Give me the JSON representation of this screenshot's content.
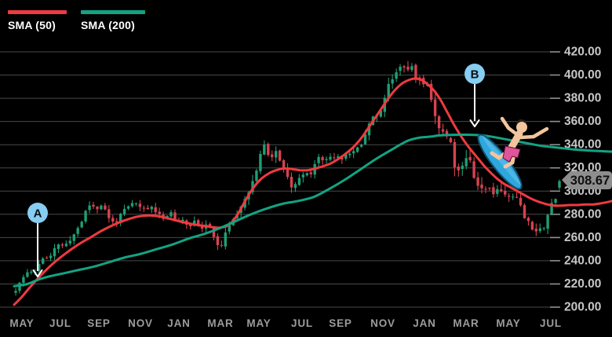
{
  "legend": {
    "items": [
      {
        "label": "SMA (50)",
        "color": "#ef3a40"
      },
      {
        "label": "SMA (200)",
        "color": "#13a383"
      }
    ],
    "position": "top-left"
  },
  "colors": {
    "background": "#000000",
    "grid": "#484848",
    "tick": "#909090",
    "y_label": "#c6c6c6",
    "x_label": "#9c9c9c",
    "up_candle": "#1f9e74",
    "down_candle": "#d6434f",
    "sma50": "#ef3a40",
    "sma200": "#13a383",
    "annotation_circle": "#86cdf2",
    "annotation_letter": "#0b0f14",
    "arrow": "#ffffff",
    "badge_bg": "#8e8e8e",
    "badge_text": "#101010"
  },
  "chart_data": {
    "type": "candlestick",
    "title": "",
    "legend_entries": [
      "SMA (50)",
      "SMA (200)"
    ],
    "grid": true,
    "y_axis": {
      "min": 200,
      "max": 420,
      "step": 20,
      "side": "right",
      "tick_labels": [
        "420.00",
        "400.00",
        "380.00",
        "360.00",
        "340.00",
        "320.00",
        "300.00",
        "280.00",
        "260.00",
        "240.00",
        "220.00",
        "200.00"
      ]
    },
    "x_axis": {
      "labels": [
        {
          "text": "MAY",
          "x": 28
        },
        {
          "text": "JUL",
          "x": 77
        },
        {
          "text": "SEP",
          "x": 126
        },
        {
          "text": "NOV",
          "x": 179
        },
        {
          "text": "JAN",
          "x": 228
        },
        {
          "text": "MAR",
          "x": 281
        },
        {
          "text": "MAY",
          "x": 330
        },
        {
          "text": "JUL",
          "x": 385
        },
        {
          "text": "SEP",
          "x": 434
        },
        {
          "text": "NOV",
          "x": 488
        },
        {
          "text": "JAN",
          "x": 541
        },
        {
          "text": "MAR",
          "x": 594
        },
        {
          "text": "MAY",
          "x": 648
        },
        {
          "text": "JUL",
          "x": 702
        }
      ]
    },
    "last_price_label": "308.67",
    "last_price_value": 308.67,
    "seed": 11,
    "candle_count": 141,
    "x_range": [
      20,
      713
    ],
    "price_anchors": [
      [
        20,
        214
      ],
      [
        26,
        221
      ],
      [
        32,
        228
      ],
      [
        38,
        233
      ],
      [
        44,
        229
      ],
      [
        50,
        238
      ],
      [
        56,
        244
      ],
      [
        62,
        240
      ],
      [
        68,
        248
      ],
      [
        75,
        255
      ],
      [
        82,
        252
      ],
      [
        90,
        258
      ],
      [
        97,
        266
      ],
      [
        104,
        274
      ],
      [
        110,
        284
      ],
      [
        116,
        290
      ],
      [
        122,
        284
      ],
      [
        130,
        289
      ],
      [
        138,
        277
      ],
      [
        146,
        272
      ],
      [
        154,
        280
      ],
      [
        162,
        285
      ],
      [
        170,
        290
      ],
      [
        178,
        287
      ],
      [
        186,
        283
      ],
      [
        194,
        287
      ],
      [
        202,
        280
      ],
      [
        210,
        277
      ],
      [
        218,
        282
      ],
      [
        226,
        272
      ],
      [
        234,
        275
      ],
      [
        242,
        271
      ],
      [
        250,
        274
      ],
      [
        258,
        268
      ],
      [
        266,
        272
      ],
      [
        272,
        263
      ],
      [
        278,
        250
      ],
      [
        284,
        257
      ],
      [
        292,
        269
      ],
      [
        300,
        280
      ],
      [
        308,
        289
      ],
      [
        314,
        297
      ],
      [
        320,
        305
      ],
      [
        326,
        315
      ],
      [
        332,
        330
      ],
      [
        336,
        344
      ],
      [
        340,
        335
      ],
      [
        346,
        329
      ],
      [
        352,
        334
      ],
      [
        358,
        325
      ],
      [
        364,
        317
      ],
      [
        370,
        301
      ],
      [
        376,
        306
      ],
      [
        382,
        311
      ],
      [
        388,
        316
      ],
      [
        394,
        313
      ],
      [
        400,
        323
      ],
      [
        406,
        329
      ],
      [
        412,
        326
      ],
      [
        418,
        331
      ],
      [
        424,
        328
      ],
      [
        430,
        332
      ],
      [
        436,
        329
      ],
      [
        442,
        333
      ],
      [
        448,
        331
      ],
      [
        454,
        336
      ],
      [
        460,
        340
      ],
      [
        466,
        352
      ],
      [
        472,
        361
      ],
      [
        478,
        367
      ],
      [
        484,
        363
      ],
      [
        490,
        382
      ],
      [
        496,
        392
      ],
      [
        502,
        400
      ],
      [
        508,
        406
      ],
      [
        514,
        411
      ],
      [
        518,
        404
      ],
      [
        522,
        409
      ],
      [
        526,
        403
      ],
      [
        530,
        400
      ],
      [
        534,
        396
      ],
      [
        538,
        391
      ],
      [
        544,
        397
      ],
      [
        550,
        379
      ],
      [
        556,
        360
      ],
      [
        562,
        354
      ],
      [
        568,
        351
      ],
      [
        574,
        346
      ],
      [
        580,
        319
      ],
      [
        586,
        315
      ],
      [
        592,
        329
      ],
      [
        598,
        334
      ],
      [
        602,
        319
      ],
      [
        606,
        311
      ],
      [
        610,
        301
      ],
      [
        616,
        306
      ],
      [
        622,
        302
      ],
      [
        628,
        297
      ],
      [
        634,
        304
      ],
      [
        640,
        296
      ],
      [
        646,
        300
      ],
      [
        652,
        292
      ],
      [
        658,
        296
      ],
      [
        664,
        288
      ],
      [
        670,
        276
      ],
      [
        676,
        270
      ],
      [
        682,
        268
      ],
      [
        688,
        267
      ],
      [
        694,
        271
      ],
      [
        700,
        284
      ],
      [
        703,
        290
      ],
      [
        706,
        287
      ],
      [
        709,
        296
      ],
      [
        711,
        303
      ],
      [
        713,
        308.67
      ]
    ],
    "volatility_anchors": [
      [
        20,
        4
      ],
      [
        100,
        4.5
      ],
      [
        200,
        4
      ],
      [
        270,
        5
      ],
      [
        290,
        5.5
      ],
      [
        336,
        6
      ],
      [
        370,
        5
      ],
      [
        450,
        4.5
      ],
      [
        500,
        7
      ],
      [
        540,
        7.5
      ],
      [
        580,
        9
      ],
      [
        600,
        8
      ],
      [
        620,
        7
      ],
      [
        650,
        6
      ],
      [
        680,
        5.5
      ],
      [
        700,
        6
      ],
      [
        713,
        3
      ]
    ],
    "series": [
      {
        "name": "SMA (50)",
        "type": "line",
        "color_key": "sma50",
        "points": [
          [
            18,
            202
          ],
          [
            28,
            209
          ],
          [
            38,
            217
          ],
          [
            48,
            224.5
          ],
          [
            58,
            231.5
          ],
          [
            70,
            239
          ],
          [
            85,
            247
          ],
          [
            100,
            254
          ],
          [
            115,
            260
          ],
          [
            130,
            266
          ],
          [
            145,
            271
          ],
          [
            160,
            275
          ],
          [
            175,
            278
          ],
          [
            190,
            279
          ],
          [
            205,
            278
          ],
          [
            220,
            275.5
          ],
          [
            235,
            273
          ],
          [
            250,
            271
          ],
          [
            265,
            269.5
          ],
          [
            280,
            268.5
          ],
          [
            292,
            271
          ],
          [
            302,
            279
          ],
          [
            312,
            291
          ],
          [
            322,
            302
          ],
          [
            332,
            310
          ],
          [
            342,
            315
          ],
          [
            352,
            318
          ],
          [
            362,
            319.5
          ],
          [
            372,
            319
          ],
          [
            382,
            318
          ],
          [
            392,
            318
          ],
          [
            402,
            319.5
          ],
          [
            412,
            321.5
          ],
          [
            422,
            324
          ],
          [
            432,
            328
          ],
          [
            442,
            333
          ],
          [
            452,
            339
          ],
          [
            462,
            347
          ],
          [
            472,
            357
          ],
          [
            482,
            367
          ],
          [
            492,
            377
          ],
          [
            502,
            386
          ],
          [
            512,
            392.5
          ],
          [
            522,
            396
          ],
          [
            530,
            397
          ],
          [
            538,
            395.5
          ],
          [
            546,
            391.5
          ],
          [
            554,
            386
          ],
          [
            562,
            378
          ],
          [
            570,
            368
          ],
          [
            578,
            358
          ],
          [
            586,
            349
          ],
          [
            594,
            341
          ],
          [
            602,
            334
          ],
          [
            610,
            327.5
          ],
          [
            618,
            321
          ],
          [
            626,
            315.5
          ],
          [
            634,
            310.5
          ],
          [
            642,
            306.5
          ],
          [
            650,
            303.5
          ],
          [
            658,
            300.5
          ],
          [
            666,
            297.5
          ],
          [
            674,
            294.5
          ],
          [
            682,
            292
          ],
          [
            690,
            290
          ],
          [
            698,
            288.5
          ],
          [
            706,
            287.5
          ],
          [
            716,
            287.5
          ],
          [
            726,
            288
          ],
          [
            736,
            288
          ],
          [
            746,
            288.5
          ],
          [
            756,
            288.5
          ],
          [
            766,
            289.5
          ],
          [
            774,
            290.5
          ],
          [
            780,
            291.5
          ]
        ]
      },
      {
        "name": "SMA (200)",
        "type": "line",
        "color_key": "sma200",
        "points": [
          [
            18,
            218
          ],
          [
            35,
            220
          ],
          [
            48,
            223.5
          ],
          [
            60,
            226
          ],
          [
            80,
            229
          ],
          [
            100,
            232
          ],
          [
            120,
            235
          ],
          [
            140,
            239
          ],
          [
            160,
            243
          ],
          [
            180,
            246
          ],
          [
            200,
            250
          ],
          [
            220,
            254
          ],
          [
            240,
            259
          ],
          [
            260,
            263
          ],
          [
            280,
            268
          ],
          [
            300,
            274
          ],
          [
            320,
            280
          ],
          [
            340,
            285
          ],
          [
            360,
            289
          ],
          [
            380,
            291.5
          ],
          [
            400,
            295
          ],
          [
            420,
            302
          ],
          [
            440,
            310
          ],
          [
            460,
            319
          ],
          [
            480,
            328
          ],
          [
            500,
            336
          ],
          [
            510,
            340
          ],
          [
            520,
            343.5
          ],
          [
            530,
            345.5
          ],
          [
            540,
            346.5
          ],
          [
            550,
            347
          ],
          [
            560,
            348
          ],
          [
            580,
            348.5
          ],
          [
            600,
            348.5
          ],
          [
            615,
            348
          ],
          [
            630,
            346.5
          ],
          [
            650,
            344
          ],
          [
            670,
            341.5
          ],
          [
            690,
            339
          ],
          [
            710,
            337.5
          ],
          [
            730,
            336
          ],
          [
            750,
            335
          ],
          [
            770,
            334.3
          ],
          [
            780,
            334
          ]
        ]
      }
    ],
    "annotations": [
      {
        "label": "A",
        "circle_x": 48,
        "circle_y": 271,
        "arrow_tip_x": 48,
        "arrow_tip_y": 352
      },
      {
        "label": "B",
        "circle_x": 605,
        "circle_y": 94,
        "arrow_tip_x": 605,
        "arrow_tip_y": 161
      }
    ]
  }
}
